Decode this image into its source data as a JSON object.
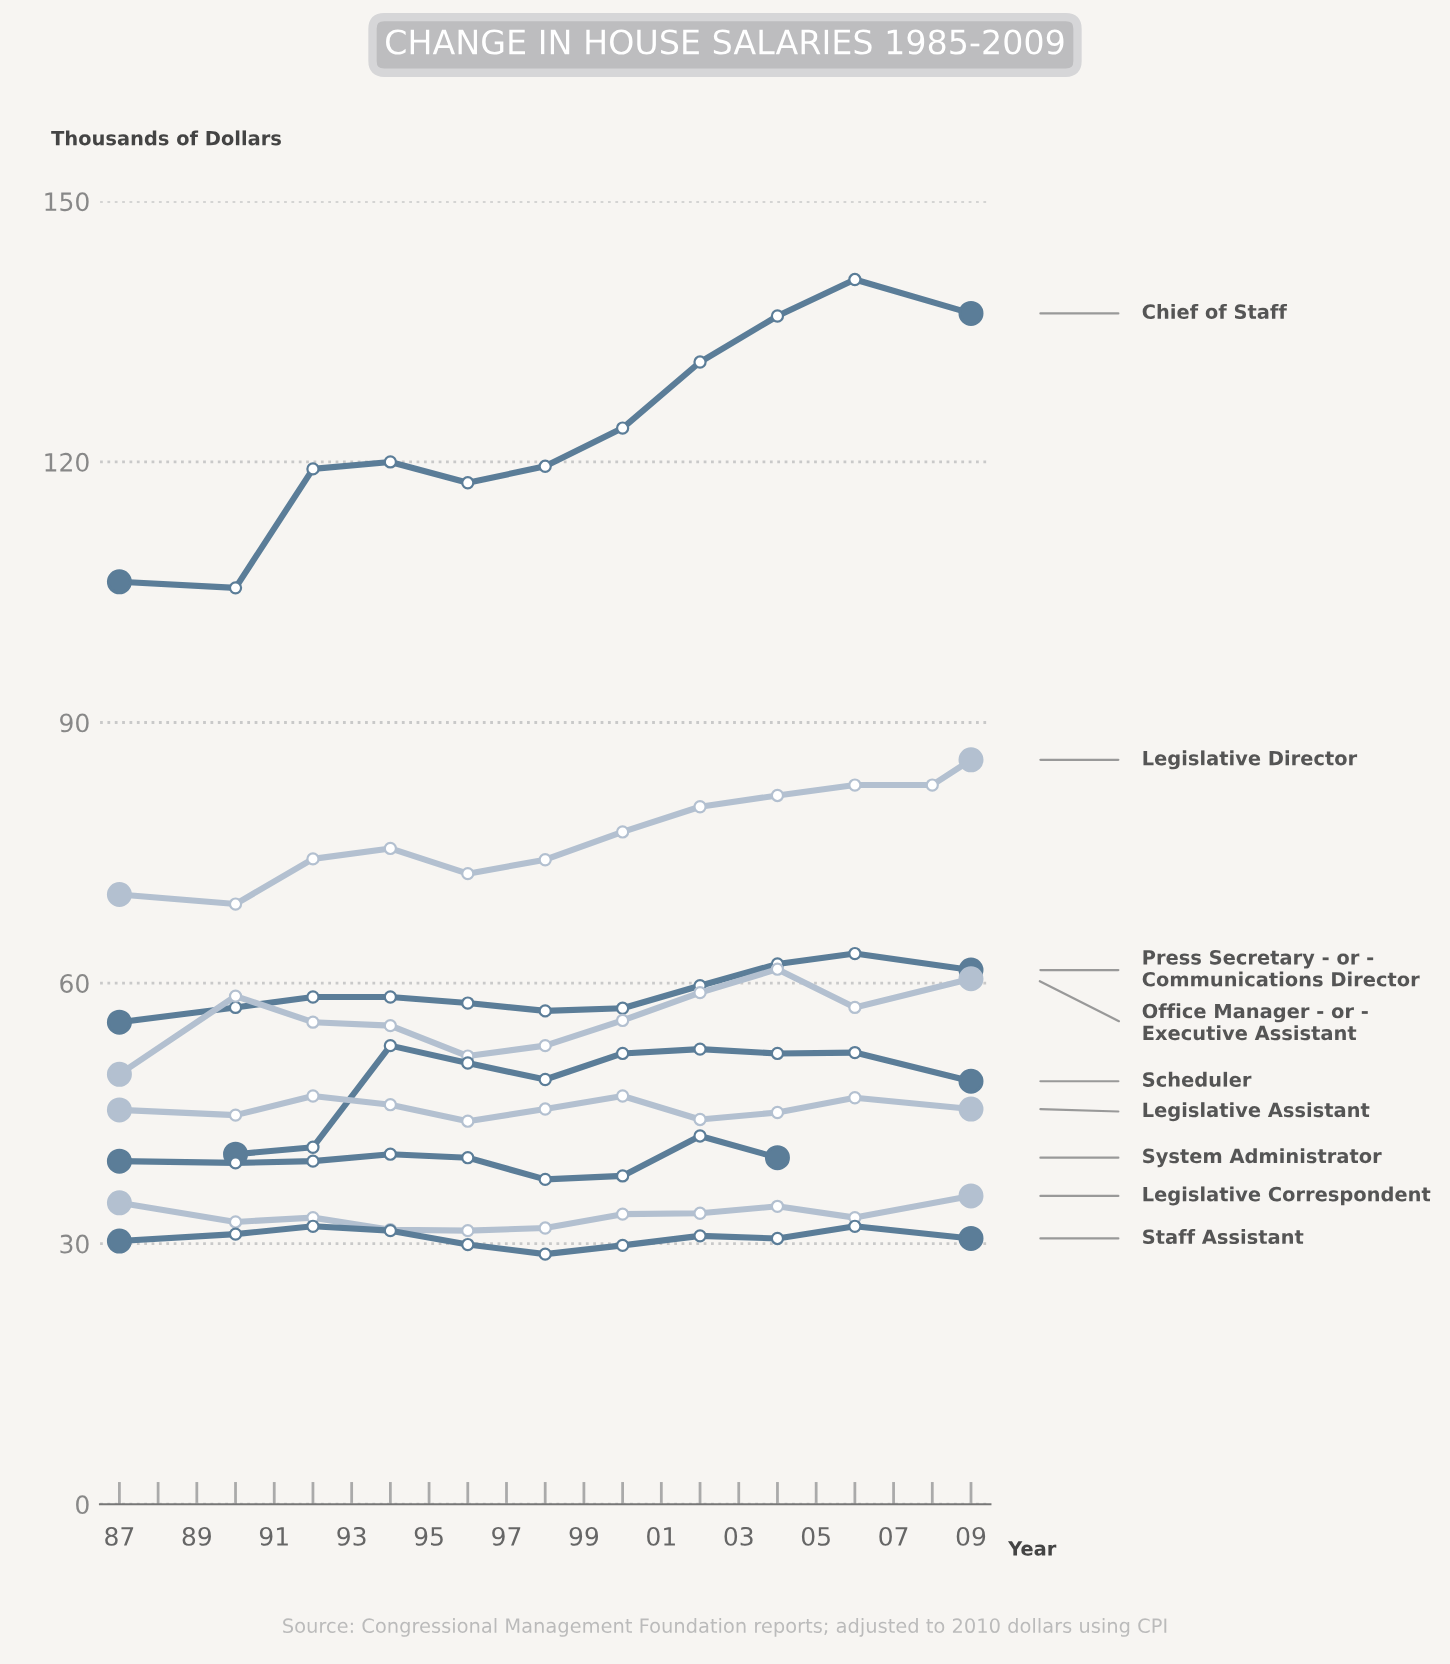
{
  "chart_data": {
    "type": "line",
    "title": "CHANGE IN HOUSE SALARIES 1985-2009",
    "ylabel": "Thousands of Dollars",
    "xlabel": "Year",
    "x": [
      1987,
      1990,
      1992,
      1994,
      1996,
      1998,
      2000,
      2002,
      2004,
      2006,
      2009
    ],
    "series": [
      {
        "name": "Chief of Staff",
        "color": "#5b7d98",
        "values": [
          106.2,
          105.5,
          119.2,
          120,
          117.6,
          119.5,
          123.9,
          131.5,
          136.8,
          141,
          137.1
        ]
      },
      {
        "name": "Legislative Director",
        "color": "#b3c0d0",
        "x": [
          1987,
          1990,
          1992,
          1994,
          1996,
          1998,
          2000,
          2002,
          2004,
          2006,
          2008,
          2009
        ],
        "values": [
          70.2,
          69.1,
          74.3,
          75.5,
          72.6,
          74.2,
          77.4,
          80.3,
          81.6,
          82.8,
          82.8,
          85.7
        ]
      },
      {
        "name": "Press Secretary - or - Communications Director",
        "color": "#5b7d98",
        "values": [
          55.5,
          57.2,
          58.4,
          58.4,
          57.7,
          56.8,
          57.1,
          59.7,
          62.2,
          63.4,
          61.5
        ]
      },
      {
        "name": "Office Manager - or - Executive Assistant",
        "color": "#b3c0d0",
        "values": [
          49.5,
          58.5,
          55.5,
          55.1,
          51.6,
          52.8,
          55.7,
          58.9,
          61.6,
          57.2,
          60.5
        ]
      },
      {
        "name": "Scheduler",
        "color": "#5b7d98",
        "values": [
          null,
          40.3,
          41.1,
          52.8,
          50.8,
          48.9,
          51.9,
          52.4,
          51.9,
          52.0,
          48.7
        ]
      },
      {
        "name": "Legislative Assistant",
        "color": "#b3c0d0",
        "values": [
          45.4,
          44.8,
          47.0,
          46.0,
          44.1,
          45.5,
          47.0,
          44.3,
          45.1,
          46.8,
          45.5
        ]
      },
      {
        "name": "System Administrator",
        "color": "#5b7d98",
        "values": [
          39.5,
          39.3,
          39.5,
          40.3,
          39.9,
          37.4,
          37.8,
          42.4,
          39.9,
          null,
          null
        ]
      },
      {
        "name": "Legislative Correspondent",
        "color": "#b3c0d0",
        "values": [
          34.7,
          32.5,
          33.0,
          31.6,
          31.5,
          31.8,
          33.4,
          33.5,
          34.3,
          33.0,
          35.5
        ]
      },
      {
        "name": "Staff Assistant",
        "color": "#5b7d98",
        "values": [
          30.3,
          31.1,
          32.0,
          31.5,
          29.9,
          28.8,
          29.8,
          30.9,
          30.6,
          32.0,
          30.6
        ]
      }
    ],
    "xlim": [
      1986.5,
      2009.5
    ],
    "xticks": [
      {
        "value": 1987,
        "label": "87"
      },
      {
        "value": 1988,
        "label": null
      },
      {
        "value": 1989,
        "label": "89"
      },
      {
        "value": 1990,
        "label": null
      },
      {
        "value": 1991,
        "label": "91"
      },
      {
        "value": 1992,
        "label": null
      },
      {
        "value": 1993,
        "label": "93"
      },
      {
        "value": 1994,
        "label": null
      },
      {
        "value": 1995,
        "label": "95"
      },
      {
        "value": 1996,
        "label": null
      },
      {
        "value": 1997,
        "label": "97"
      },
      {
        "value": 1998,
        "label": null
      },
      {
        "value": 1999,
        "label": "99"
      },
      {
        "value": 2000,
        "label": null
      },
      {
        "value": 2001,
        "label": "01"
      },
      {
        "value": 2002,
        "label": null
      },
      {
        "value": 2003,
        "label": "03"
      },
      {
        "value": 2004,
        "label": null
      },
      {
        "value": 2005,
        "label": "05"
      },
      {
        "value": 2006,
        "label": null
      },
      {
        "value": 2007,
        "label": "07"
      },
      {
        "value": 2008,
        "label": null
      },
      {
        "value": 2009,
        "label": "09"
      }
    ],
    "ylim": [
      0,
      150
    ],
    "yticks": [
      0,
      30,
      60,
      90,
      120,
      150
    ],
    "grid": "y",
    "legend": "right",
    "marker": "circle",
    "line_style": "solid",
    "annotations": [
      "Source: Congressional Management Foundation reports; adjusted to 2010 dollars using CPI"
    ]
  }
}
